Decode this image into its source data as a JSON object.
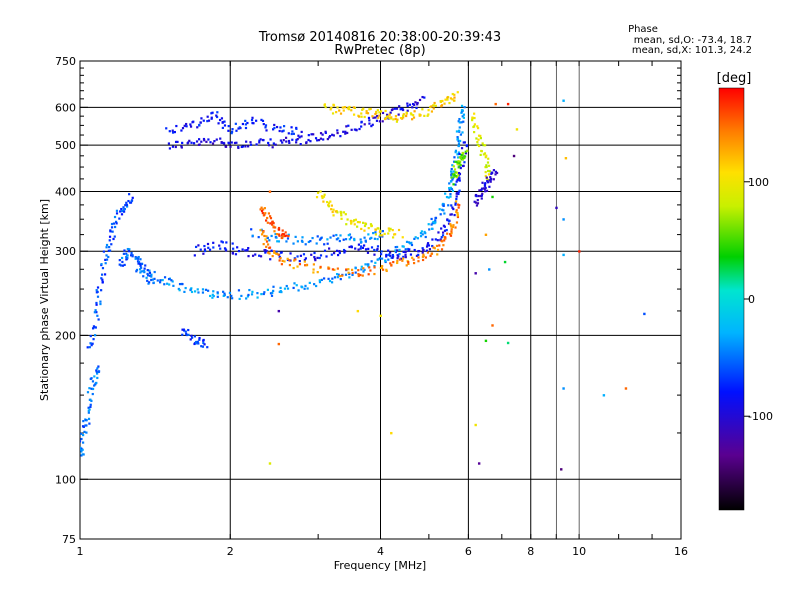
{
  "title_line1": "Tromsø 20140816 20:38:00-20:39:43",
  "title_line2": "RwPretec (8p)",
  "phase_stats": {
    "heading": "Phase",
    "line1": "mean, sd,O: -73.4, 18.7",
    "line2": "mean, sd,X: 101.3, 24.2"
  },
  "colorbar": {
    "label": "[deg]",
    "ticks": [
      {
        "value": 100,
        "label": "100"
      },
      {
        "value": 0,
        "label": "0"
      },
      {
        "value": -100,
        "label": "-100"
      }
    ],
    "range": [
      -180,
      180
    ]
  },
  "chart_data": {
    "type": "scatter",
    "xlabel": "Frequency [MHz]",
    "ylabel": "Stationary phase Virtual Height [km]",
    "x_scale": "log",
    "y_scale": "log",
    "xlim": [
      1,
      16
    ],
    "ylim": [
      75,
      750
    ],
    "grid": true,
    "x_ticks": [
      {
        "value": 1,
        "label": "1"
      },
      {
        "value": 2,
        "label": "2"
      },
      {
        "value": 4,
        "label": "4"
      },
      {
        "value": 6,
        "label": "6"
      },
      {
        "value": 8,
        "label": "8"
      },
      {
        "value": 10,
        "label": "10"
      },
      {
        "value": 16,
        "label": "16"
      }
    ],
    "x_major_grid": [
      2,
      4,
      6,
      8
    ],
    "x_minor_grid": [
      9,
      10
    ],
    "y_ticks": [
      {
        "value": 75,
        "label": "75"
      },
      {
        "value": 100,
        "label": "100"
      },
      {
        "value": 200,
        "label": "200"
      },
      {
        "value": 300,
        "label": "300"
      },
      {
        "value": 400,
        "label": "400"
      },
      {
        "value": 500,
        "label": "500"
      },
      {
        "value": 600,
        "label": "600"
      },
      {
        "value": 750,
        "label": "750"
      }
    ],
    "y_grid": [
      100,
      200,
      300,
      400,
      500,
      600
    ],
    "y_minor_ticks": [
      125,
      150,
      175,
      225,
      250,
      275,
      325,
      350,
      375,
      425,
      450,
      475,
      525,
      550,
      575,
      625,
      650,
      675,
      700,
      725
    ],
    "traces": [
      {
        "phase": -95,
        "points": [
          [
            1.5,
            500
          ],
          [
            1.7,
            505
          ],
          [
            1.9,
            510
          ],
          [
            2.1,
            500
          ],
          [
            2.4,
            505
          ],
          [
            2.7,
            510
          ],
          [
            3.0,
            520
          ],
          [
            3.3,
            530
          ],
          [
            3.7,
            550
          ],
          [
            4.1,
            575
          ],
          [
            4.5,
            600
          ],
          [
            4.9,
            625
          ]
        ]
      },
      {
        "phase": -80,
        "points": [
          [
            1.5,
            540
          ],
          [
            1.7,
            550
          ],
          [
            1.85,
            580
          ],
          [
            2.0,
            540
          ],
          [
            2.2,
            560
          ],
          [
            2.5,
            540
          ],
          [
            2.8,
            530
          ]
        ]
      },
      {
        "phase": -40,
        "points": [
          [
            1.3,
            275
          ],
          [
            1.45,
            262
          ],
          [
            1.6,
            252
          ],
          [
            1.8,
            245
          ],
          [
            2.0,
            243
          ],
          [
            2.3,
            245
          ],
          [
            2.6,
            250
          ],
          [
            3.0,
            258
          ],
          [
            3.4,
            268
          ],
          [
            3.8,
            282
          ],
          [
            4.2,
            295
          ],
          [
            4.6,
            310
          ],
          [
            5.0,
            335
          ],
          [
            5.3,
            360
          ],
          [
            5.5,
            400
          ],
          [
            5.6,
            440
          ],
          [
            5.7,
            500
          ],
          [
            5.8,
            560
          ],
          [
            5.85,
            610
          ]
        ]
      },
      {
        "phase": -60,
        "points": [
          [
            1.05,
            185
          ],
          [
            1.08,
            220
          ],
          [
            1.1,
            260
          ],
          [
            1.13,
            300
          ],
          [
            1.17,
            340
          ],
          [
            1.22,
            370
          ],
          [
            1.27,
            390
          ]
        ]
      },
      {
        "phase": -50,
        "points": [
          [
            1.0,
            110
          ],
          [
            1.02,
            125
          ],
          [
            1.04,
            140
          ],
          [
            1.06,
            160
          ],
          [
            1.09,
            170
          ]
        ]
      },
      {
        "phase": -55,
        "points": [
          [
            1.2,
            280
          ],
          [
            1.25,
            300
          ],
          [
            1.3,
            290
          ],
          [
            1.35,
            270
          ],
          [
            1.4,
            260
          ]
        ]
      },
      {
        "phase": -70,
        "points": [
          [
            1.6,
            205
          ],
          [
            1.7,
            195
          ],
          [
            1.8,
            192
          ]
        ]
      },
      {
        "phase": -85,
        "points": [
          [
            1.7,
            300
          ],
          [
            1.9,
            310
          ],
          [
            2.1,
            300
          ],
          [
            2.4,
            295
          ],
          [
            2.8,
            290
          ],
          [
            3.2,
            300
          ],
          [
            3.6,
            305
          ],
          [
            4.0,
            300
          ],
          [
            4.4,
            295
          ],
          [
            4.8,
            300
          ],
          [
            5.2,
            320
          ],
          [
            5.5,
            350
          ],
          [
            5.7,
            400
          ],
          [
            5.8,
            450
          ],
          [
            5.9,
            520
          ]
        ]
      },
      {
        "phase": -45,
        "points": [
          [
            2.2,
            330
          ],
          [
            2.5,
            320
          ],
          [
            2.9,
            315
          ],
          [
            3.3,
            318
          ],
          [
            3.7,
            320
          ],
          [
            4.1,
            325
          ]
        ]
      },
      {
        "phase": 140,
        "points": [
          [
            2.3,
            330
          ],
          [
            2.4,
            300
          ],
          [
            2.6,
            285
          ],
          [
            3.0,
            275
          ],
          [
            3.5,
            270
          ],
          [
            4.0,
            275
          ],
          [
            4.5,
            285
          ],
          [
            5.0,
            295
          ],
          [
            5.4,
            315
          ],
          [
            5.6,
            340
          ],
          [
            5.75,
            380
          ]
        ]
      },
      {
        "phase": 100,
        "points": [
          [
            3.0,
            395
          ],
          [
            3.2,
            370
          ],
          [
            3.4,
            350
          ],
          [
            3.7,
            340
          ],
          [
            4.0,
            330
          ],
          [
            4.4,
            325
          ]
        ]
      },
      {
        "phase": 155,
        "points": [
          [
            2.3,
            370
          ],
          [
            2.4,
            350
          ],
          [
            2.5,
            330
          ],
          [
            2.6,
            315
          ]
        ]
      },
      {
        "phase": 60,
        "points": [
          [
            5.6,
            420
          ],
          [
            5.7,
            450
          ],
          [
            5.8,
            470
          ],
          [
            5.9,
            480
          ]
        ]
      },
      {
        "phase": 110,
        "points": [
          [
            3.1,
            600
          ],
          [
            3.4,
            590
          ],
          [
            3.7,
            585
          ],
          [
            4.0,
            580
          ],
          [
            4.3,
            570
          ],
          [
            4.6,
            575
          ],
          [
            5.0,
            590
          ],
          [
            5.4,
            615
          ],
          [
            5.7,
            635
          ]
        ]
      },
      {
        "phase": 90,
        "points": [
          [
            6.1,
            580
          ],
          [
            6.3,
            520
          ],
          [
            6.5,
            470
          ],
          [
            6.6,
            420
          ]
        ]
      },
      {
        "phase": -100,
        "points": [
          [
            6.2,
            380
          ],
          [
            6.4,
            400
          ],
          [
            6.6,
            420
          ],
          [
            6.8,
            440
          ]
        ]
      }
    ],
    "scattered_points": [
      {
        "x": 6.8,
        "y": 610,
        "phase": 150
      },
      {
        "x": 7.2,
        "y": 610,
        "phase": 170
      },
      {
        "x": 7.5,
        "y": 540,
        "phase": 100
      },
      {
        "x": 7.4,
        "y": 475,
        "phase": -140
      },
      {
        "x": 9.3,
        "y": 620,
        "phase": -30
      },
      {
        "x": 9.4,
        "y": 470,
        "phase": 120
      },
      {
        "x": 9.0,
        "y": 370,
        "phase": -110
      },
      {
        "x": 9.3,
        "y": 350,
        "phase": -40
      },
      {
        "x": 9.3,
        "y": 295,
        "phase": -30
      },
      {
        "x": 10.0,
        "y": 300,
        "phase": 170
      },
      {
        "x": 7.1,
        "y": 285,
        "phase": 30
      },
      {
        "x": 6.6,
        "y": 275,
        "phase": -40
      },
      {
        "x": 6.2,
        "y": 270,
        "phase": -120
      },
      {
        "x": 6.7,
        "y": 210,
        "phase": 150
      },
      {
        "x": 6.5,
        "y": 195,
        "phase": 40
      },
      {
        "x": 7.2,
        "y": 193,
        "phase": 20
      },
      {
        "x": 6.2,
        "y": 130,
        "phase": 100
      },
      {
        "x": 6.3,
        "y": 108,
        "phase": -130
      },
      {
        "x": 6.7,
        "y": 390,
        "phase": 40
      },
      {
        "x": 6.5,
        "y": 325,
        "phase": 130
      },
      {
        "x": 9.3,
        "y": 155,
        "phase": -40
      },
      {
        "x": 11.2,
        "y": 150,
        "phase": -30
      },
      {
        "x": 12.4,
        "y": 155,
        "phase": 150
      },
      {
        "x": 13.5,
        "y": 222,
        "phase": -60
      },
      {
        "x": 9.2,
        "y": 105,
        "phase": -140
      },
      {
        "x": 4.0,
        "y": 220,
        "phase": 100
      },
      {
        "x": 4.2,
        "y": 125,
        "phase": 110
      },
      {
        "x": 2.4,
        "y": 108,
        "phase": 90
      },
      {
        "x": 2.5,
        "y": 192,
        "phase": 150
      },
      {
        "x": 2.5,
        "y": 225,
        "phase": -120
      },
      {
        "x": 2.4,
        "y": 400,
        "phase": 150
      },
      {
        "x": 3.6,
        "y": 225,
        "phase": 110
      }
    ]
  }
}
